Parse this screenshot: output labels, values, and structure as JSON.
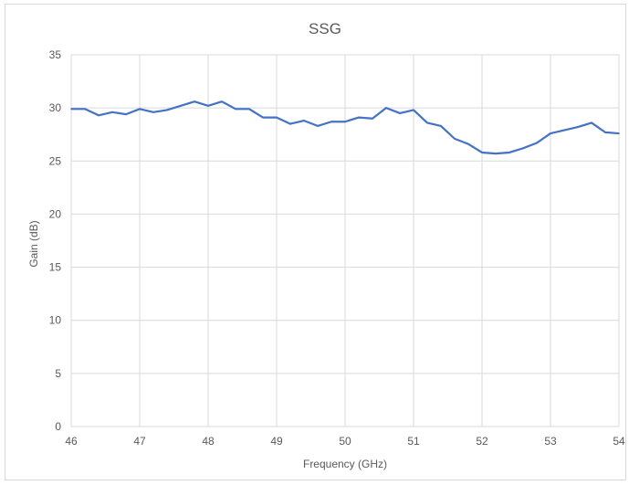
{
  "chart_data": {
    "type": "line",
    "title": "SSG",
    "xlabel": "Frequency (GHz)",
    "ylabel": "Gain (dB)",
    "xlim": [
      46,
      54
    ],
    "ylim": [
      0,
      35
    ],
    "xticks": [
      46,
      47,
      48,
      49,
      50,
      51,
      52,
      53,
      54
    ],
    "yticks": [
      0,
      5,
      10,
      15,
      20,
      25,
      30,
      35
    ],
    "grid": true,
    "legend": "none",
    "series": [
      {
        "color": "#4472c4",
        "x": [
          46.0,
          46.2,
          46.4,
          46.6,
          46.8,
          47.0,
          47.2,
          47.4,
          47.6,
          47.8,
          48.0,
          48.2,
          48.4,
          48.6,
          48.8,
          49.0,
          49.2,
          49.4,
          49.6,
          49.8,
          50.0,
          50.2,
          50.4,
          50.6,
          50.8,
          51.0,
          51.2,
          51.4,
          51.6,
          51.8,
          52.0,
          52.2,
          52.4,
          52.6,
          52.8,
          53.0,
          53.2,
          53.4,
          53.6,
          53.8,
          54.0
        ],
        "values": [
          29.9,
          29.9,
          29.3,
          29.6,
          29.4,
          29.9,
          29.6,
          29.8,
          30.2,
          30.6,
          30.2,
          30.6,
          29.9,
          29.9,
          29.1,
          29.1,
          28.5,
          28.8,
          28.3,
          28.7,
          28.7,
          29.1,
          29.0,
          30.0,
          29.5,
          29.8,
          28.6,
          28.3,
          27.1,
          26.6,
          25.8,
          25.7,
          25.8,
          26.2,
          26.7,
          27.6,
          27.9,
          28.2,
          28.6,
          27.7,
          27.6
        ]
      }
    ]
  }
}
